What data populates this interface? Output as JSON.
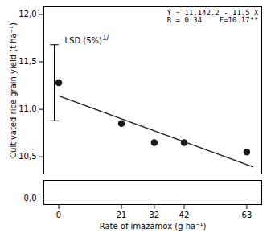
{
  "chart_data": {
    "type": "scatter",
    "xlabel": "Rate of imazamox (g ha⁻¹)",
    "ylabel": "Cultivated rice grain yield (t ha⁻¹)",
    "x": [
      0,
      21,
      32,
      42,
      63
    ],
    "values": [
      11.28,
      10.85,
      10.65,
      10.65,
      10.55
    ],
    "color": "#1a1a1a",
    "marker": "circle",
    "regression": {
      "type": "line",
      "x": [
        0,
        65
      ],
      "values": [
        11.1422,
        10.3947
      ],
      "color": "#1a1a1a"
    },
    "lsd": {
      "x": -1.5,
      "center": 11.28,
      "half": 0.4,
      "label": "LSD (5%)",
      "label_x": 2,
      "label_y": 11.72,
      "footnote": "1/"
    },
    "annotations": [
      "Y = 11,142.2 - 11.5 X",
      "R = 0.34    F=10.17**"
    ],
    "xlim": [
      -5,
      68
    ],
    "xticks": [
      0,
      21,
      32,
      42,
      63
    ],
    "ylim": [
      10.32,
      12.08
    ],
    "yticks": [
      {
        "value": 10.5,
        "label": "10,5"
      },
      {
        "value": 11.0,
        "label": "11,0"
      },
      {
        "value": 11.5,
        "label": "11,5"
      },
      {
        "value": 12.0,
        "label": "12,0"
      }
    ],
    "ylim_break": [
      -0.08,
      0.22
    ],
    "yticks_break": [
      {
        "value": 0.0,
        "label": "0,0"
      }
    ],
    "grid": false
  }
}
